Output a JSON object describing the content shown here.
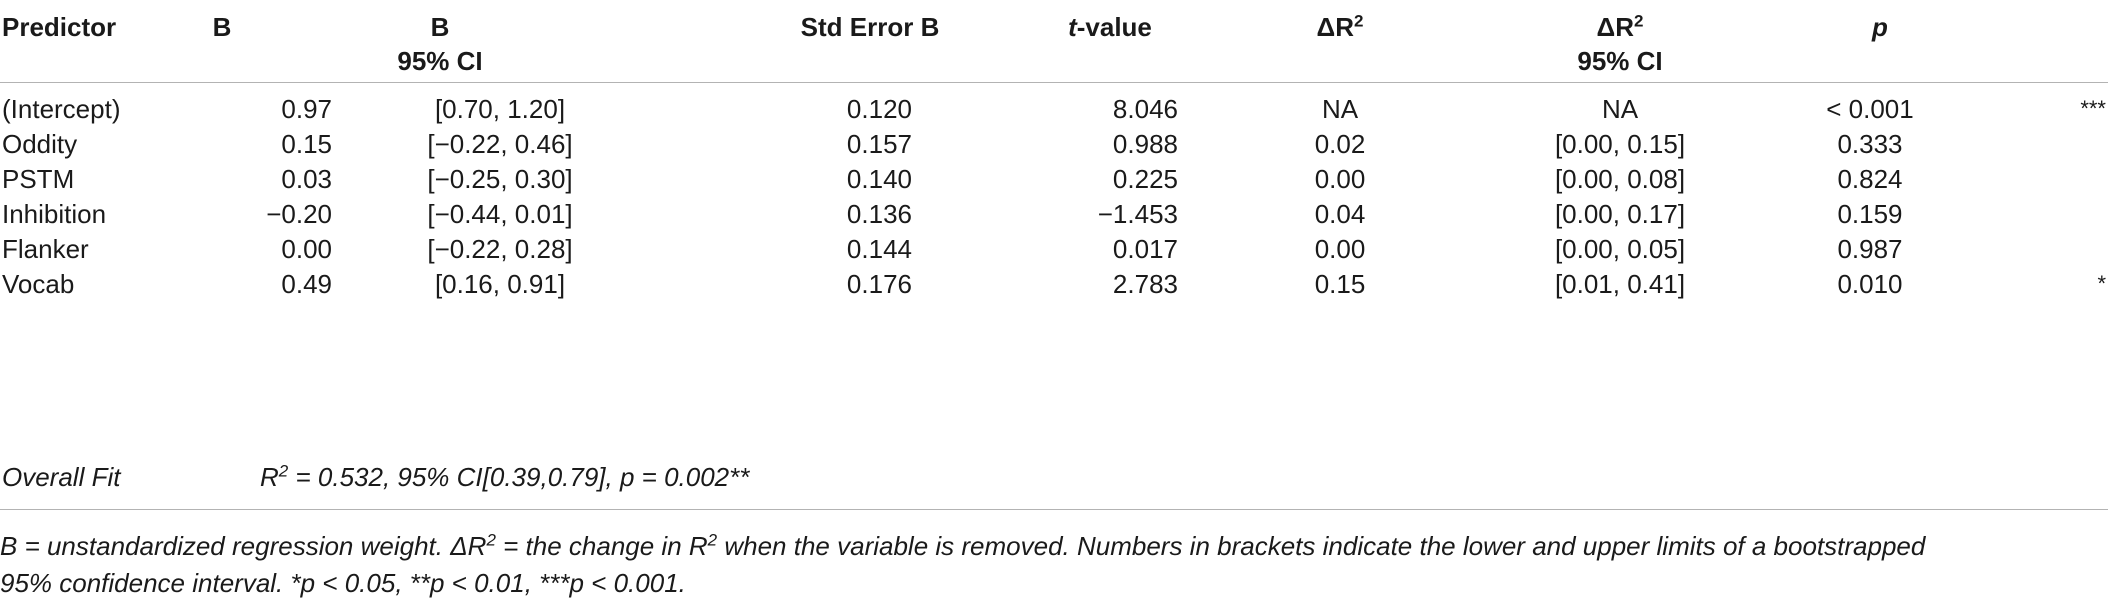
{
  "table": {
    "headers": {
      "predictor": "Predictor",
      "b": "B",
      "b_ci_line1": "B",
      "b_ci_line2": "95% CI",
      "se": "Std Error B",
      "t_value_italic": "t",
      "t_value_rest": "-value",
      "dr2_delta": "ΔR",
      "dr2_sup": "2",
      "dr2ci_delta": "ΔR",
      "dr2ci_sup": "2",
      "dr2ci_line2": "95% CI",
      "p": "p"
    },
    "rows": [
      {
        "predictor": "(Intercept)",
        "b": "0.97",
        "b_ci": "[0.70, 1.20]",
        "se": "0.120",
        "t": "8.046",
        "dr2": "NA",
        "dr2_ci": "NA",
        "p": "< 0.001",
        "sig": "***"
      },
      {
        "predictor": "Oddity",
        "b": "0.15",
        "b_ci": "[−0.22, 0.46]",
        "se": "0.157",
        "t": "0.988",
        "dr2": "0.02",
        "dr2_ci": "[0.00, 0.15]",
        "p": "0.333",
        "sig": ""
      },
      {
        "predictor": "PSTM",
        "b": "0.03",
        "b_ci": "[−0.25, 0.30]",
        "se": "0.140",
        "t": "0.225",
        "dr2": "0.00",
        "dr2_ci": "[0.00, 0.08]",
        "p": "0.824",
        "sig": ""
      },
      {
        "predictor": "Inhibition",
        "b": "−0.20",
        "b_ci": "[−0.44, 0.01]",
        "se": "0.136",
        "t": "−1.453",
        "dr2": "0.04",
        "dr2_ci": "[0.00, 0.17]",
        "p": "0.159",
        "sig": ""
      },
      {
        "predictor": "Flanker",
        "b": "0.00",
        "b_ci": "[−0.22, 0.28]",
        "se": "0.144",
        "t": "0.017",
        "dr2": "0.00",
        "dr2_ci": "[0.00, 0.05]",
        "p": "0.987",
        "sig": ""
      },
      {
        "predictor": "Vocab",
        "b": "0.49",
        "b_ci": "[0.16, 0.91]",
        "se": "0.176",
        "t": "2.783",
        "dr2": "0.15",
        "dr2_ci": "[0.01, 0.41]",
        "p": "0.010",
        "sig": "*"
      }
    ],
    "overall_fit": {
      "label": "Overall Fit",
      "r_prefix": "R",
      "r_sup": "2",
      "text": " = 0.532, 95% CI[0.39,0.79], p = 0.002**"
    }
  },
  "notes": {
    "line1_a": "B = unstandardized regression weight. ΔR",
    "line1_sup1": "2",
    "line1_b": " = the change in R",
    "line1_sup2": "2",
    "line1_c": " when the variable is removed. Numbers in brackets indicate the lower and upper limits of a bootstrapped",
    "line2": "95% confidence interval. *p < 0.05, **p < 0.01, ***p < 0.001."
  }
}
